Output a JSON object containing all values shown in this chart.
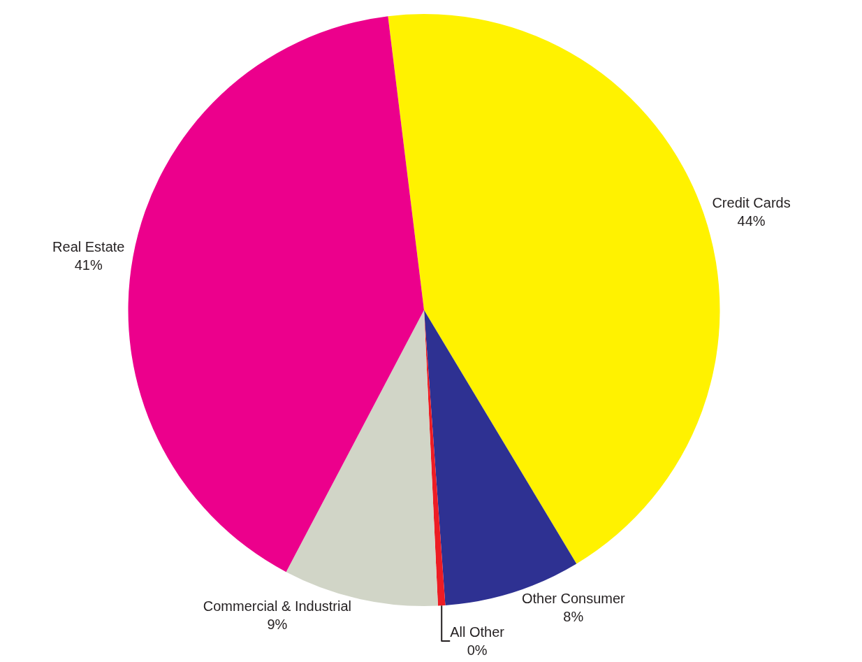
{
  "chart_data": {
    "type": "pie",
    "categories": [
      "Credit Cards",
      "Other Consumer",
      "All Other",
      "Commercial & Industrial",
      "Real Estate"
    ],
    "values": [
      43.5,
      7.5,
      0.4,
      8.5,
      40.5
    ],
    "value_labels": [
      "44%",
      "8%",
      "0%",
      "9%",
      "41%"
    ],
    "colors": [
      "#fff200",
      "#2e3192",
      "#ed1c24",
      "#d1d5c7",
      "#ec008c"
    ]
  }
}
